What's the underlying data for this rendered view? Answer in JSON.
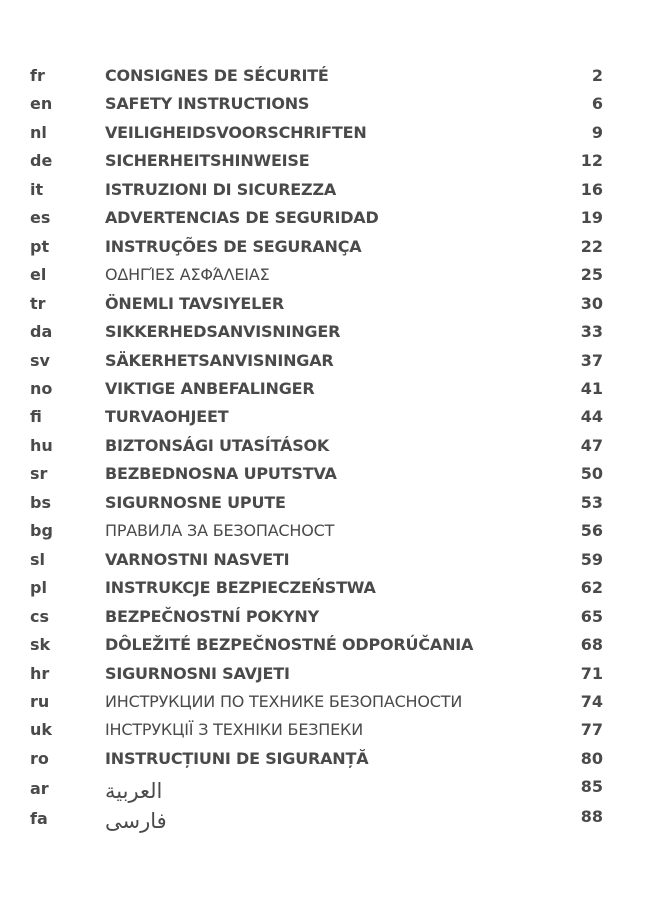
{
  "toc": [
    {
      "code": "fr",
      "title": "CONSIGNES DE SÉCURITÉ",
      "page": "2",
      "style": "bold"
    },
    {
      "code": "en",
      "title": "SAFETY INSTRUCTIONS",
      "page": "6",
      "style": "bold"
    },
    {
      "code": "nl",
      "title": "VEILIGHEIDSVOORSCHRIFTEN",
      "page": "9",
      "style": "bold"
    },
    {
      "code": "de",
      "title": "SICHERHEITSHINWEISE",
      "page": "12",
      "style": "bold"
    },
    {
      "code": "it",
      "title": "ISTRUZIONI DI SICUREZZA",
      "page": "16",
      "style": "bold"
    },
    {
      "code": "es",
      "title": "ADVERTENCIAS DE SEGURIDAD",
      "page": "19",
      "style": "bold"
    },
    {
      "code": "pt",
      "title": "INSTRUÇÕES DE SEGURANÇA",
      "page": "22",
      "style": "bold"
    },
    {
      "code": "el",
      "title": "ΟΔΗΓΊΕΣ ΑΣΦΆΛΕΙΑΣ",
      "page": "25",
      "style": "plain"
    },
    {
      "code": "tr",
      "title": "ÖNEMLI TAVSIYELER",
      "page": "30",
      "style": "bold"
    },
    {
      "code": "da",
      "title": "SIKKERHEDSANVISNINGER",
      "page": "33",
      "style": "bold"
    },
    {
      "code": "sv",
      "title": "SÄKERHETSANVISNINGAR",
      "page": "37",
      "style": "bold"
    },
    {
      "code": "no",
      "title": "VIKTIGE ANBEFALINGER",
      "page": "41",
      "style": "bold"
    },
    {
      "code": "fi",
      "title": "TURVAOHJEET",
      "page": "44",
      "style": "bold"
    },
    {
      "code": "hu",
      "title": "BIZTONSÁGI UTASÍTÁSOK",
      "page": "47",
      "style": "bold"
    },
    {
      "code": "sr",
      "title": "BEZBEDNOSNA UPUTSTVA",
      "page": "50",
      "style": "bold"
    },
    {
      "code": "bs",
      "title": "SIGURNOSNE UPUTE",
      "page": "53",
      "style": "bold"
    },
    {
      "code": "bg",
      "title": "ПРАВИЛА ЗА БЕЗОПАСНОСТ",
      "page": "56",
      "style": "plain"
    },
    {
      "code": "sl",
      "title": "VARNOSTNI NASVETI",
      "page": "59",
      "style": "bold"
    },
    {
      "code": "pl",
      "title": "INSTRUKCJE BEZPIECZEŃSTWA",
      "page": "62",
      "style": "bold"
    },
    {
      "code": "cs",
      "title": "BEZPEČNOSTNÍ POKYNY",
      "page": "65",
      "style": "bold"
    },
    {
      "code": "sk",
      "title": "DÔLEŽITÉ BEZPEČNOSTNÉ ODPORÚČANIA",
      "page": "68",
      "style": "bold"
    },
    {
      "code": "hr",
      "title": "SIGURNOSNI SAVJETI",
      "page": "71",
      "style": "bold"
    },
    {
      "code": "ru",
      "title": "ИНСТРУКЦИИ ПО ТЕХНИКЕ БЕЗОПАСНОСТИ",
      "page": "74",
      "style": "plain"
    },
    {
      "code": "uk",
      "title": "ІНСТРУКЦІЇ З ТЕХНІКИ БЕЗПЕКИ",
      "page": "77",
      "style": "plain"
    },
    {
      "code": "ro",
      "title": "INSTRUCȚIUNI DE SIGURANȚĂ",
      "page": "80",
      "style": "bold"
    },
    {
      "code": "ar",
      "title": "العربية",
      "page": "85",
      "style": "arabic"
    },
    {
      "code": "fa",
      "title": "فارسی",
      "page": "88",
      "style": "arabic"
    }
  ]
}
